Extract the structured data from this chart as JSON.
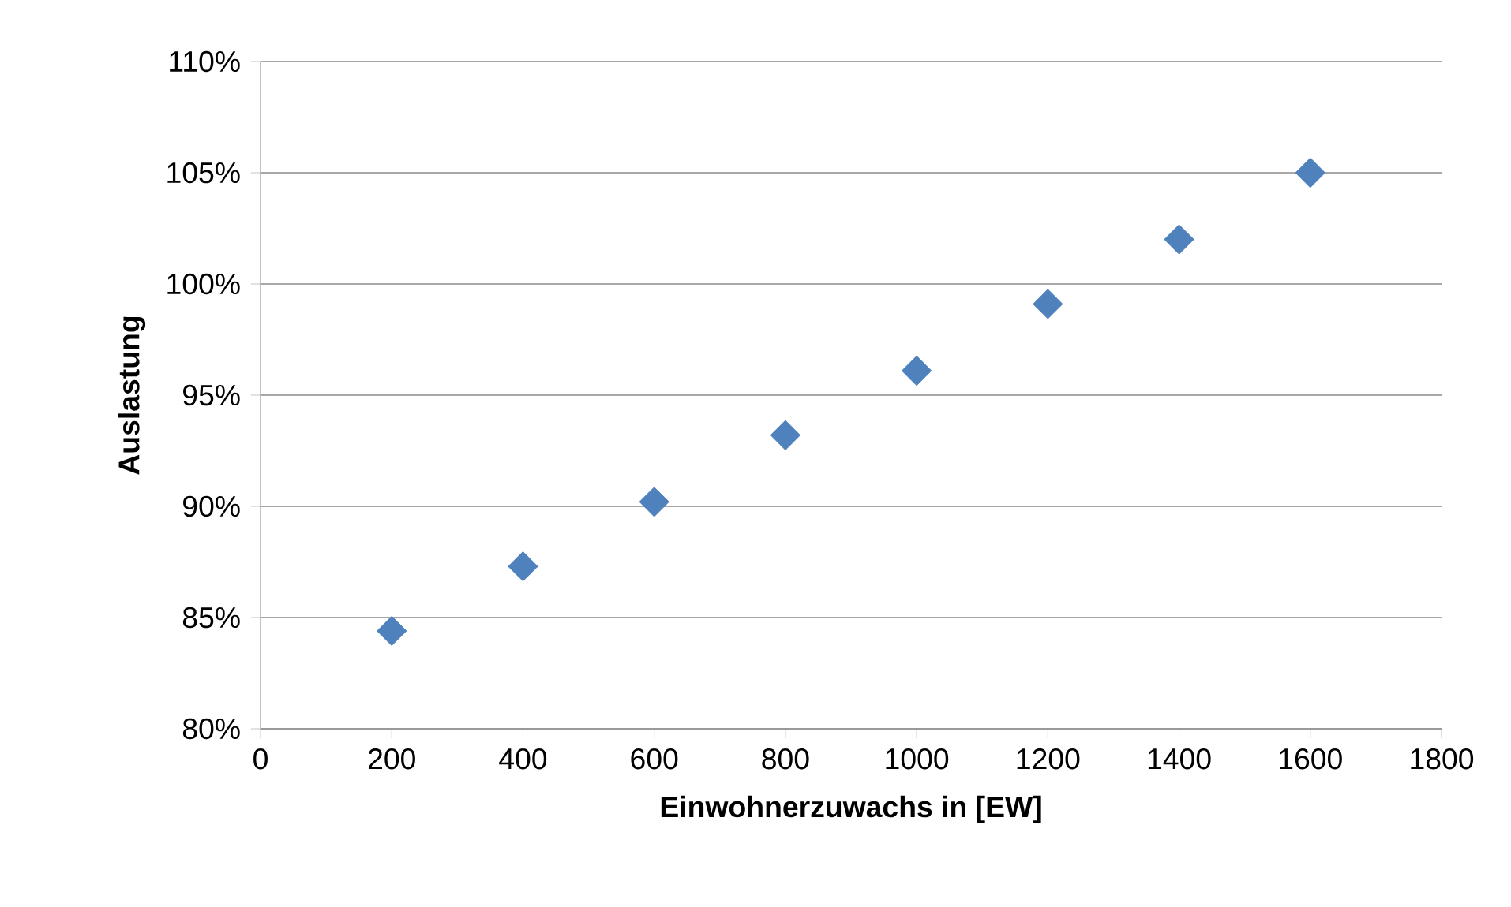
{
  "chart_data": {
    "type": "scatter",
    "xlabel": "Einwohnerzuwachs in [EW]",
    "ylabel": "Auslastung",
    "x": [
      200,
      400,
      600,
      800,
      1000,
      1200,
      1400,
      1600
    ],
    "series": [
      {
        "color": "#4f81bd",
        "values": [
          84.4,
          87.3,
          90.2,
          93.2,
          96.1,
          99.1,
          102.0,
          105.0
        ]
      }
    ],
    "xlim": [
      0,
      1800
    ],
    "xticks": [
      0,
      200,
      400,
      600,
      800,
      1000,
      1200,
      1400,
      1600,
      1800
    ],
    "ylim": [
      80,
      110
    ],
    "yticks": [
      {
        "value": 80,
        "label": "80%"
      },
      {
        "value": 85,
        "label": "85%"
      },
      {
        "value": 90,
        "label": "90%"
      },
      {
        "value": 95,
        "label": "95%"
      },
      {
        "value": 100,
        "label": "100%"
      },
      {
        "value": 105,
        "label": "105%"
      },
      {
        "value": 110,
        "label": "110%"
      }
    ],
    "grid": "y",
    "marker": "diamond"
  }
}
